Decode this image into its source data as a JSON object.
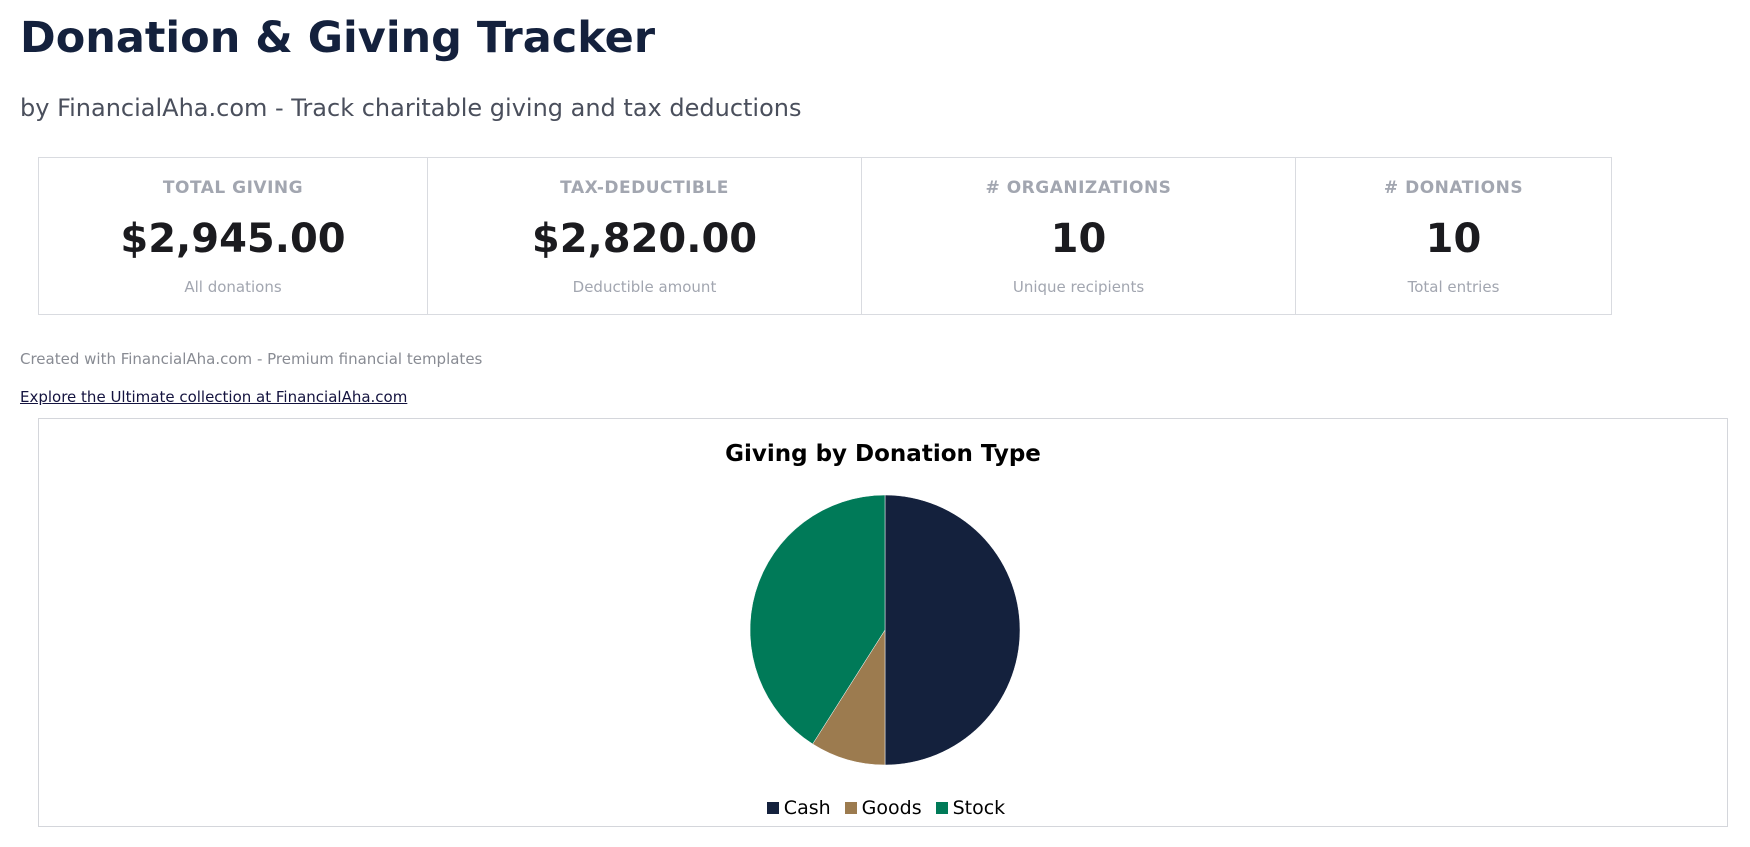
{
  "header": {
    "title": "Donation & Giving Tracker",
    "subtitle": "by FinancialAha.com - Track charitable giving and tax deductions"
  },
  "kpis": [
    {
      "label": "TOTAL GIVING",
      "value": "$2,945.00",
      "sub": "All donations"
    },
    {
      "label": "TAX-DEDUCTIBLE",
      "value": "$2,820.00",
      "sub": "Deductible amount"
    },
    {
      "label": "# ORGANIZATIONS",
      "value": "10",
      "sub": "Unique recipients"
    },
    {
      "label": "# DONATIONS",
      "value": "10",
      "sub": "Total entries"
    }
  ],
  "footer": {
    "credit": "Created with FinancialAha.com - Premium financial templates",
    "link_text": "Explore the Ultimate collection at FinancialAha.com"
  },
  "chart_data": {
    "type": "pie",
    "title": "Giving by Donation Type",
    "categories": [
      "Cash",
      "Goods",
      "Stock"
    ],
    "values": [
      50,
      9,
      41
    ],
    "colors": [
      "#14213d",
      "#9c7b4f",
      "#007a58"
    ],
    "start_angle_deg": 0,
    "direction": "clockwise",
    "legend_position": "bottom"
  }
}
